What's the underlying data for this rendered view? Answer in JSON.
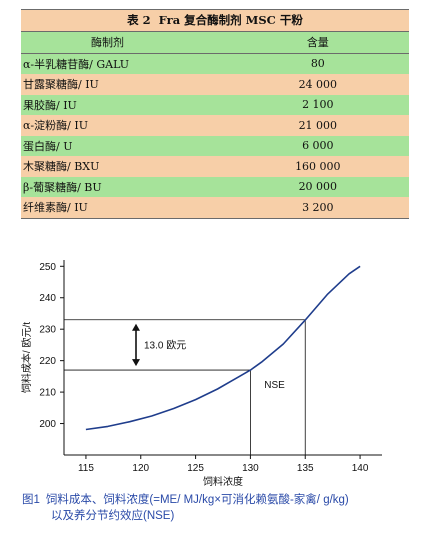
{
  "table": {
    "label": "表 2",
    "title": "Fra 复合酶制剂 MSC 干粉",
    "headers": [
      "酶制剂",
      "含量"
    ],
    "rows": [
      {
        "name": "α-半乳糖苷酶/ GALU",
        "value": "80"
      },
      {
        "name": "甘露聚糖酶/ IU",
        "value": "24 000"
      },
      {
        "name": "果胶酶/ IU",
        "value": "2 100"
      },
      {
        "name": "α-淀粉酶/ IU",
        "value": "21 000"
      },
      {
        "name": "蛋白酶/ U",
        "value": "6 000"
      },
      {
        "name": "木聚糖酶/ BXU",
        "value": "160 000"
      },
      {
        "name": "β-葡聚糖酶/ BU",
        "value": "20 000"
      },
      {
        "name": "纤维素酶/ IU",
        "value": "3 200"
      }
    ],
    "row_colors": [
      "#a6e39a",
      "#f7cfa8"
    ]
  },
  "figure": {
    "label": "图1",
    "caption_line1": "饲料成本、饲料浓度(=ME/ MJ/kg×可消化赖氨酸-家禽/ g/kg)",
    "caption_line2": "以及养分节约效应(NSE)",
    "caption_color": "#2a4aa8"
  },
  "chart_data": {
    "type": "line",
    "xlabel": "饲料浓度",
    "ylabel": "饲料成本/ 欧元/t",
    "xlim": [
      113,
      142
    ],
    "ylim": [
      190,
      252
    ],
    "xticks": [
      115,
      120,
      125,
      130,
      135,
      140
    ],
    "yticks": [
      200,
      210,
      220,
      230,
      240,
      250
    ],
    "series": [
      {
        "x": [
          115,
          117,
          119,
          121,
          123,
          125,
          127,
          129,
          130,
          131,
          133,
          135,
          137,
          139,
          140
        ],
        "y": [
          198.1,
          199.1,
          200.6,
          202.4,
          204.8,
          207.6,
          211.0,
          215.0,
          217.0,
          219.5,
          225.3,
          232.9,
          241.0,
          247.6,
          250.0
        ]
      }
    ],
    "annotations": [
      {
        "text": "13.0 欧元"
      },
      {
        "text": "NSE"
      }
    ],
    "reference_points": [
      {
        "x": 130,
        "y": 217
      },
      {
        "x": 135,
        "y": 233
      }
    ],
    "grid": false
  }
}
